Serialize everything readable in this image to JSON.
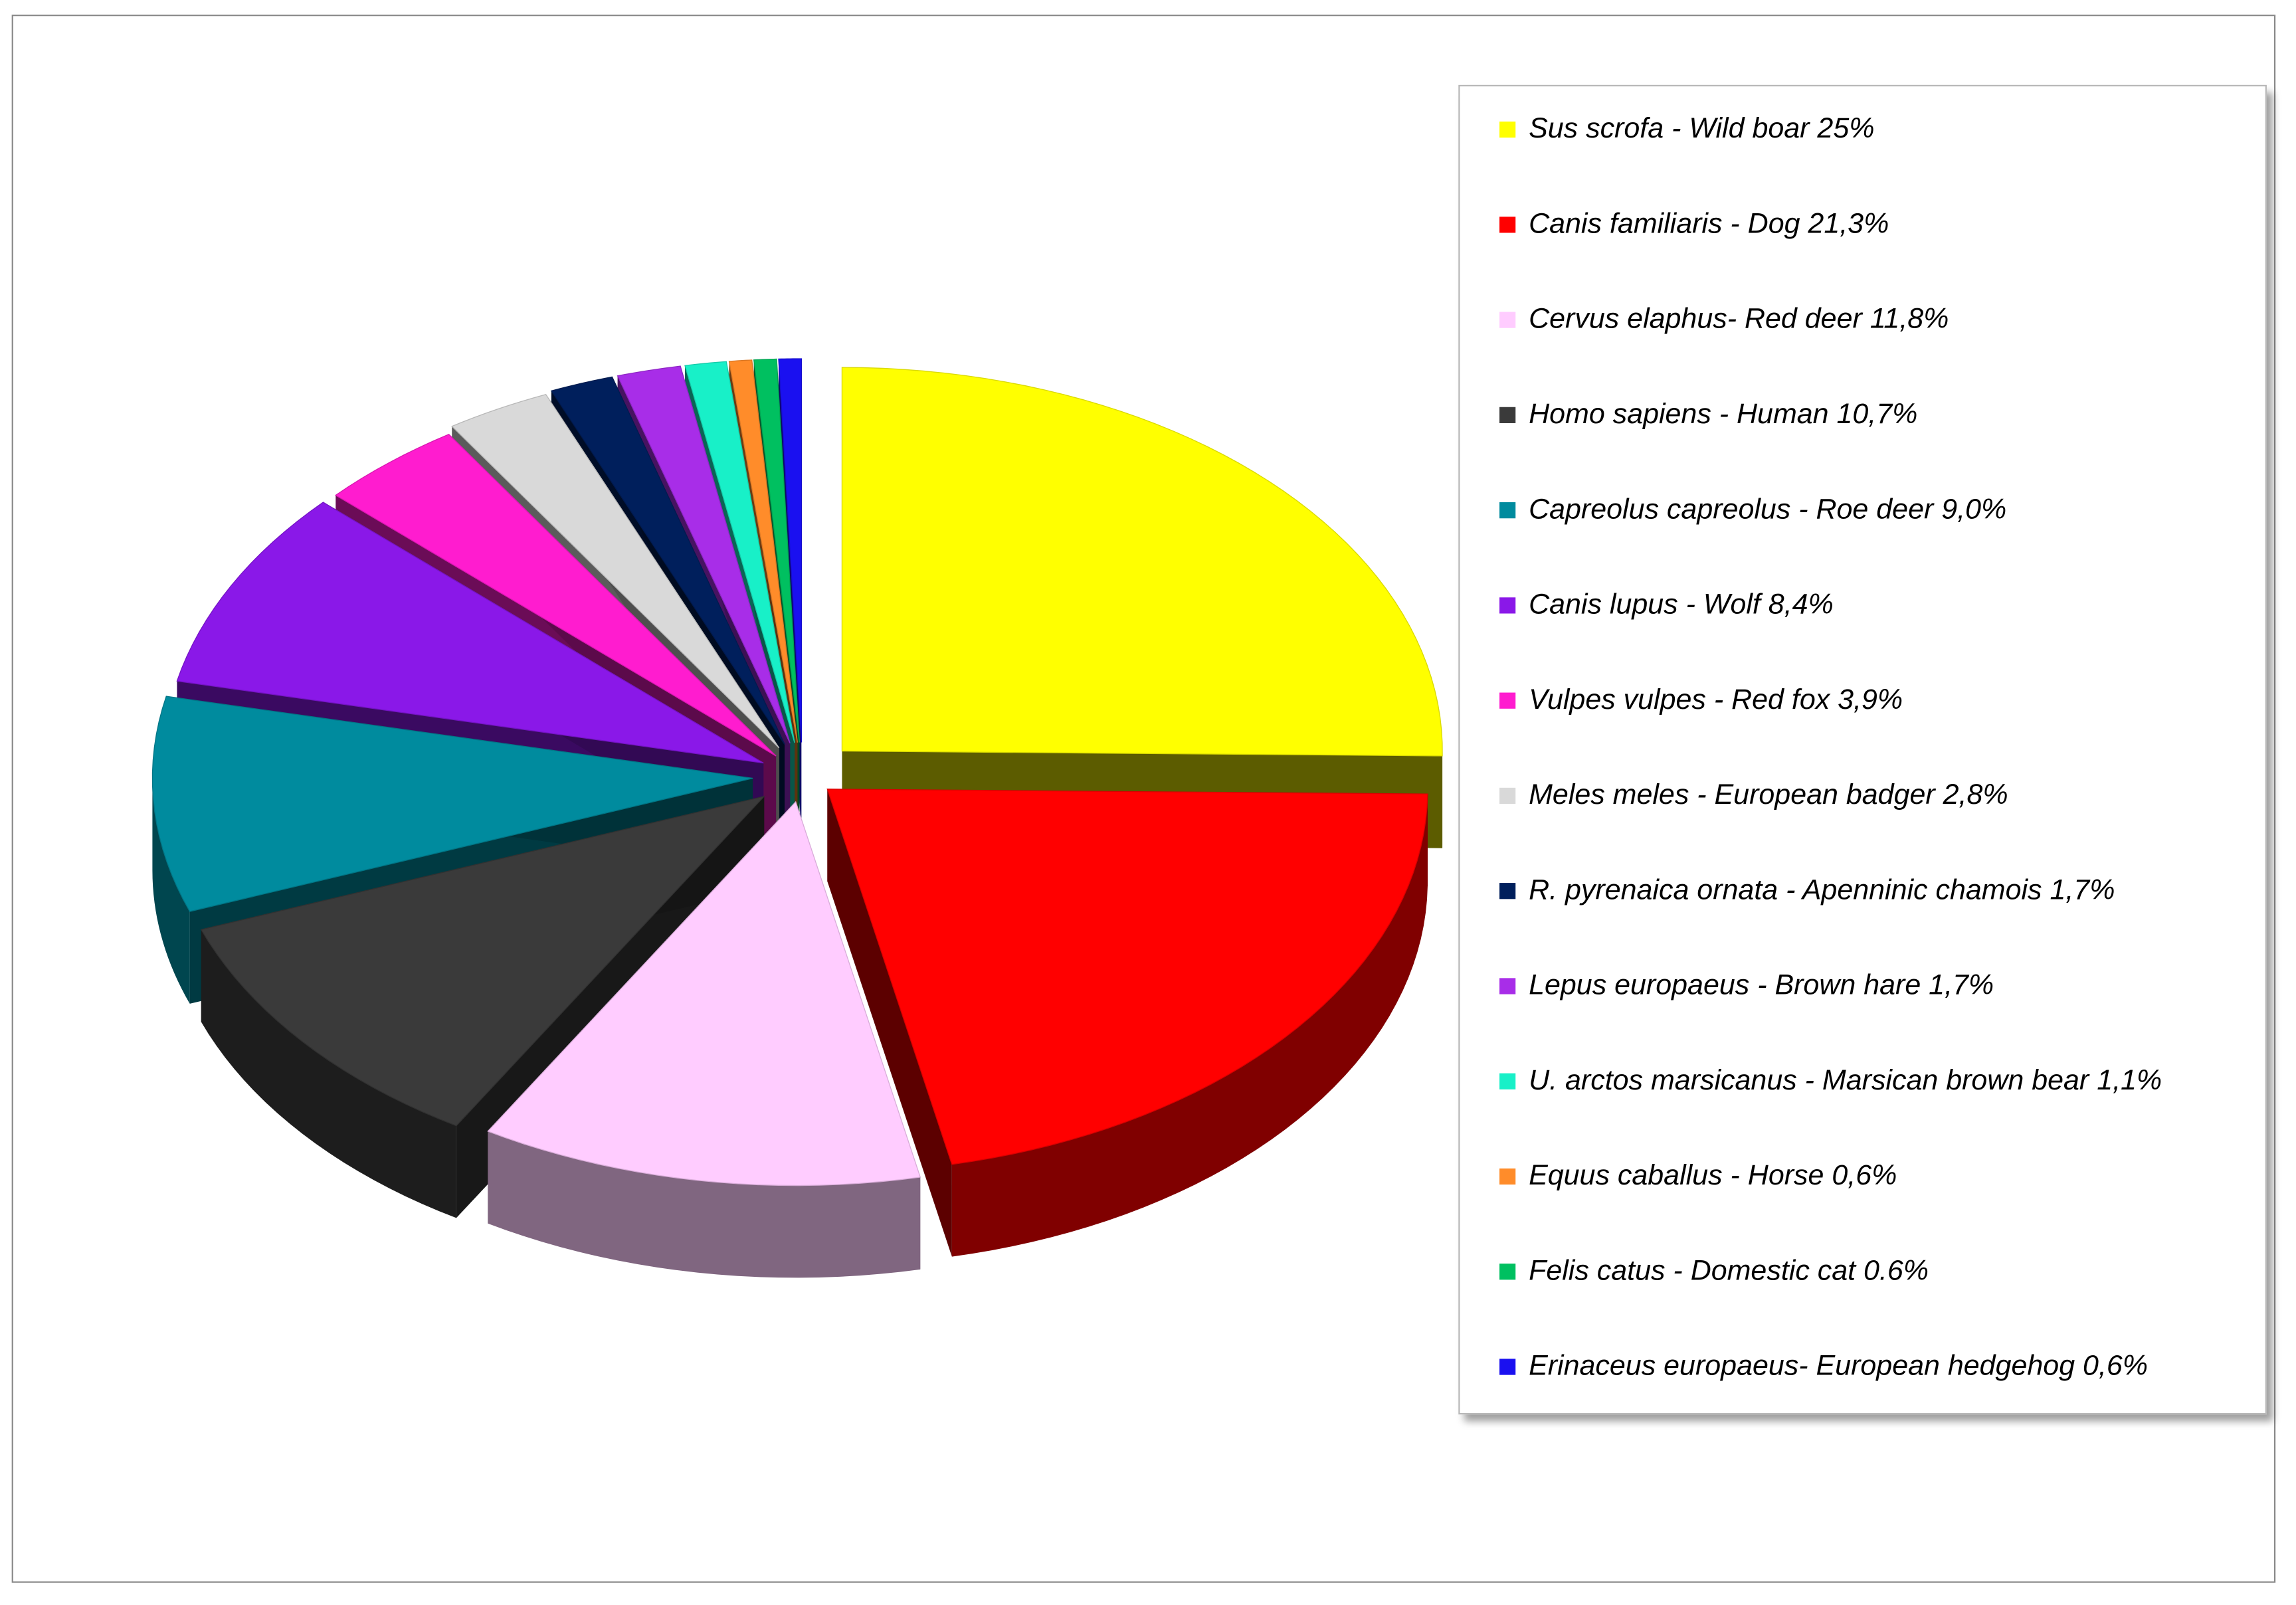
{
  "chart_data": {
    "type": "pie",
    "variant": "3d-exploded",
    "legend_position": "right",
    "slices": [
      {
        "label": "Sus scrofa - Wild boar 25%",
        "value": 25.0,
        "color": "#ffff00"
      },
      {
        "label": "Canis familiaris - Dog 21,3%",
        "value": 21.3,
        "color": "#ff0000"
      },
      {
        "label": "Cervus elaphus- Red deer 11,8%",
        "value": 11.8,
        "color": "#ffccff"
      },
      {
        "label": "Homo sapiens - Human 10,7%",
        "value": 10.7,
        "color": "#3a3a3a"
      },
      {
        "label": "Capreolus capreolus - Roe deer 9,0%",
        "value": 9.0,
        "color": "#008b9e"
      },
      {
        "label": "Canis lupus - Wolf 8,4%",
        "value": 8.4,
        "color": "#8a18e8"
      },
      {
        "label": "Vulpes vulpes - Red fox 3,9%",
        "value": 3.9,
        "color": "#ff1ccf"
      },
      {
        "label": "Meles meles - European badger 2,8%",
        "value": 2.8,
        "color": "#d9d9d9"
      },
      {
        "label": "R. pyrenaica ornata  - Apenninic chamois  1,7%",
        "value": 1.7,
        "color": "#001f5c"
      },
      {
        "label": "Lepus europaeus - Brown hare 1,7%",
        "value": 1.7,
        "color": "#a82de8"
      },
      {
        "label": "U. arctos marsicanus - Marsican brown bear 1,1%",
        "value": 1.1,
        "color": "#18f0c8"
      },
      {
        "label": "Equus caballus - Horse 0,6%",
        "value": 0.6,
        "color": "#ff8c2a"
      },
      {
        "label": "Felis catus - Domestic cat 0.6%",
        "value": 0.6,
        "color": "#00c060"
      },
      {
        "label": "Erinaceus europaeus- European hedgehog 0,6%",
        "value": 0.6,
        "color": "#1a10f0"
      }
    ]
  }
}
